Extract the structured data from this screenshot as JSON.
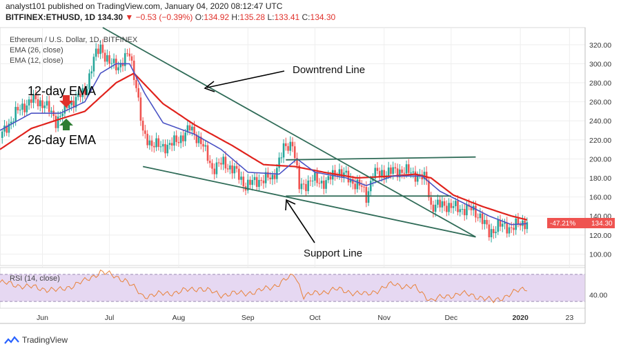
{
  "header": {
    "line1": "analyst101 published on TradingView.com, January 04, 2020 08:12:47 UTC",
    "symbol": "BITFINEX:ETHUSD, 1D",
    "last": "134.30",
    "change": "▼ −0.53 (−0.39%)",
    "o_label": "O:",
    "o": "134.92",
    "h_label": "H:",
    "h": "135.28",
    "l_label": "L:",
    "l": "133.41",
    "c_label": "C:",
    "c": "134.30"
  },
  "legend": {
    "title": "Ethereum / U.S. Dollar, 1D, BITFINEX",
    "ema26": "EMA (26, close)",
    "ema12": "EMA (12, close)",
    "rsi": "RSI (14, close)"
  },
  "annotations": {
    "downtrend": "Downtrend Line",
    "support": "Support Line",
    "ema12": "12-day EMA",
    "ema26": "26-day EMA"
  },
  "price_tag": {
    "percent": "-47.21%",
    "value": "134.30"
  },
  "rsi_tick": "40.00",
  "colors": {
    "up": "#26a69a",
    "down": "#ef5350",
    "ema26": "#e0221c",
    "ema12": "#4a52c4",
    "rsi_line": "#e8823a",
    "rsi_band": "#e6d8f2",
    "tag": "#ef5350",
    "trend": "#2f6b57",
    "arrow": "#2e7d32"
  },
  "brand": "TradingView",
  "chart_data": {
    "type": "candlestick",
    "y_ticks": [
      100,
      120,
      140,
      160,
      180,
      200,
      220,
      240,
      260,
      280,
      300,
      320
    ],
    "y_tick_labels": [
      "100.00",
      "120.00",
      "140.00",
      "160.00",
      "180.00",
      "200.00",
      "220.00",
      "240.00",
      "260.00",
      "280.00",
      "300.00",
      "320.00"
    ],
    "ylim": [
      88,
      338
    ],
    "x_labels": [
      "Jun",
      "Jul",
      "Aug",
      "Sep",
      "Oct",
      "Nov",
      "Dec",
      "2020",
      "23"
    ],
    "x_label_dates": [
      "2019-06-01",
      "2019-07-01",
      "2019-08-01",
      "2019-09-01",
      "2019-10-01",
      "2019-11-01",
      "2019-12-01",
      "2020-01-01",
      "2020-01-23"
    ],
    "date_range": [
      "2019-05-13",
      "2020-01-30"
    ],
    "price_keypoints": [
      [
        "2019-05-13",
        222
      ],
      [
        "2019-05-20",
        248
      ],
      [
        "2019-05-27",
        262
      ],
      [
        "2019-06-02",
        258
      ],
      [
        "2019-06-07",
        240
      ],
      [
        "2019-06-13",
        258
      ],
      [
        "2019-06-20",
        270
      ],
      [
        "2019-06-24",
        305
      ],
      [
        "2019-06-27",
        318
      ],
      [
        "2019-07-01",
        300
      ],
      [
        "2019-07-05",
        298
      ],
      [
        "2019-07-10",
        310
      ],
      [
        "2019-07-13",
        278
      ],
      [
        "2019-07-16",
        225
      ],
      [
        "2019-07-19",
        218
      ],
      [
        "2019-07-24",
        212
      ],
      [
        "2019-07-31",
        218
      ],
      [
        "2019-08-06",
        232
      ],
      [
        "2019-08-11",
        218
      ],
      [
        "2019-08-16",
        190
      ],
      [
        "2019-08-21",
        196
      ],
      [
        "2019-08-26",
        188
      ],
      [
        "2019-08-31",
        172
      ],
      [
        "2019-09-06",
        178
      ],
      [
        "2019-09-12",
        180
      ],
      [
        "2019-09-17",
        210
      ],
      [
        "2019-09-21",
        218
      ],
      [
        "2019-09-24",
        170
      ],
      [
        "2019-09-30",
        178
      ],
      [
        "2019-10-06",
        175
      ],
      [
        "2019-10-11",
        188
      ],
      [
        "2019-10-18",
        176
      ],
      [
        "2019-10-22",
        170
      ],
      [
        "2019-10-24",
        160
      ],
      [
        "2019-10-27",
        184
      ],
      [
        "2019-11-03",
        186
      ],
      [
        "2019-11-09",
        188
      ],
      [
        "2019-11-15",
        184
      ],
      [
        "2019-11-20",
        178
      ],
      [
        "2019-11-22",
        150
      ],
      [
        "2019-11-28",
        152
      ],
      [
        "2019-12-04",
        148
      ],
      [
        "2019-12-10",
        147
      ],
      [
        "2019-12-14",
        140
      ],
      [
        "2019-12-18",
        122
      ],
      [
        "2019-12-22",
        130
      ],
      [
        "2019-12-28",
        128
      ],
      [
        "2020-01-04",
        134.3
      ]
    ],
    "ema12_keypoints": [
      [
        "2019-05-13",
        230
      ],
      [
        "2019-05-27",
        248
      ],
      [
        "2019-06-09",
        248
      ],
      [
        "2019-06-20",
        260
      ],
      [
        "2019-06-27",
        290
      ],
      [
        "2019-07-04",
        300
      ],
      [
        "2019-07-10",
        300
      ],
      [
        "2019-07-17",
        268
      ],
      [
        "2019-07-25",
        238
      ],
      [
        "2019-08-08",
        226
      ],
      [
        "2019-08-20",
        210
      ],
      [
        "2019-09-01",
        186
      ],
      [
        "2019-09-15",
        184
      ],
      [
        "2019-09-23",
        200
      ],
      [
        "2019-10-01",
        186
      ],
      [
        "2019-10-15",
        180
      ],
      [
        "2019-10-24",
        172
      ],
      [
        "2019-11-05",
        182
      ],
      [
        "2019-11-18",
        182
      ],
      [
        "2019-11-26",
        166
      ],
      [
        "2019-12-08",
        152
      ],
      [
        "2019-12-18",
        140
      ],
      [
        "2019-12-28",
        131
      ],
      [
        "2020-01-04",
        132
      ]
    ],
    "ema26_keypoints": [
      [
        "2019-05-13",
        210
      ],
      [
        "2019-05-27",
        232
      ],
      [
        "2019-06-09",
        242
      ],
      [
        "2019-06-20",
        250
      ],
      [
        "2019-07-04",
        280
      ],
      [
        "2019-07-12",
        290
      ],
      [
        "2019-07-25",
        258
      ],
      [
        "2019-08-08",
        236
      ],
      [
        "2019-08-25",
        214
      ],
      [
        "2019-09-08",
        194
      ],
      [
        "2019-09-22",
        192
      ],
      [
        "2019-10-05",
        186
      ],
      [
        "2019-10-20",
        180
      ],
      [
        "2019-11-05",
        182
      ],
      [
        "2019-11-15",
        184
      ],
      [
        "2019-11-22",
        180
      ],
      [
        "2019-12-02",
        162
      ],
      [
        "2019-12-15",
        150
      ],
      [
        "2019-12-28",
        140
      ],
      [
        "2020-01-04",
        136
      ]
    ],
    "trendlines": [
      {
        "name": "downtrend",
        "from": [
          "2019-06-28",
          338
        ],
        "to": [
          "2019-12-12",
          118
        ]
      },
      {
        "name": "support",
        "from": [
          "2019-07-16",
          192
        ],
        "to": [
          "2019-12-12",
          118
        ]
      },
      {
        "name": "range-top",
        "from": [
          "2019-09-18",
          199
        ],
        "to": [
          "2019-12-12",
          202
        ]
      },
      {
        "name": "range-bottom",
        "from": [
          "2019-09-18",
          161
        ],
        "to": [
          "2019-12-01",
          161
        ]
      }
    ],
    "rsi": {
      "ylim": [
        20,
        80
      ],
      "band": [
        30,
        70
      ],
      "keypoints": [
        [
          "2019-05-13",
          58
        ],
        [
          "2019-05-25",
          52
        ],
        [
          "2019-06-08",
          46
        ],
        [
          "2019-06-20",
          60
        ],
        [
          "2019-06-27",
          74
        ],
        [
          "2019-07-08",
          62
        ],
        [
          "2019-07-16",
          38
        ],
        [
          "2019-08-01",
          44
        ],
        [
          "2019-08-10",
          50
        ],
        [
          "2019-08-20",
          40
        ],
        [
          "2019-09-05",
          44
        ],
        [
          "2019-09-15",
          56
        ],
        [
          "2019-09-22",
          70
        ],
        [
          "2019-09-26",
          38
        ],
        [
          "2019-10-10",
          48
        ],
        [
          "2019-10-24",
          40
        ],
        [
          "2019-11-05",
          56
        ],
        [
          "2019-11-15",
          50
        ],
        [
          "2019-11-22",
          32
        ],
        [
          "2019-12-05",
          42
        ],
        [
          "2019-12-15",
          36
        ],
        [
          "2019-12-20",
          30
        ],
        [
          "2019-12-28",
          42
        ],
        [
          "2020-01-04",
          50
        ]
      ]
    }
  }
}
